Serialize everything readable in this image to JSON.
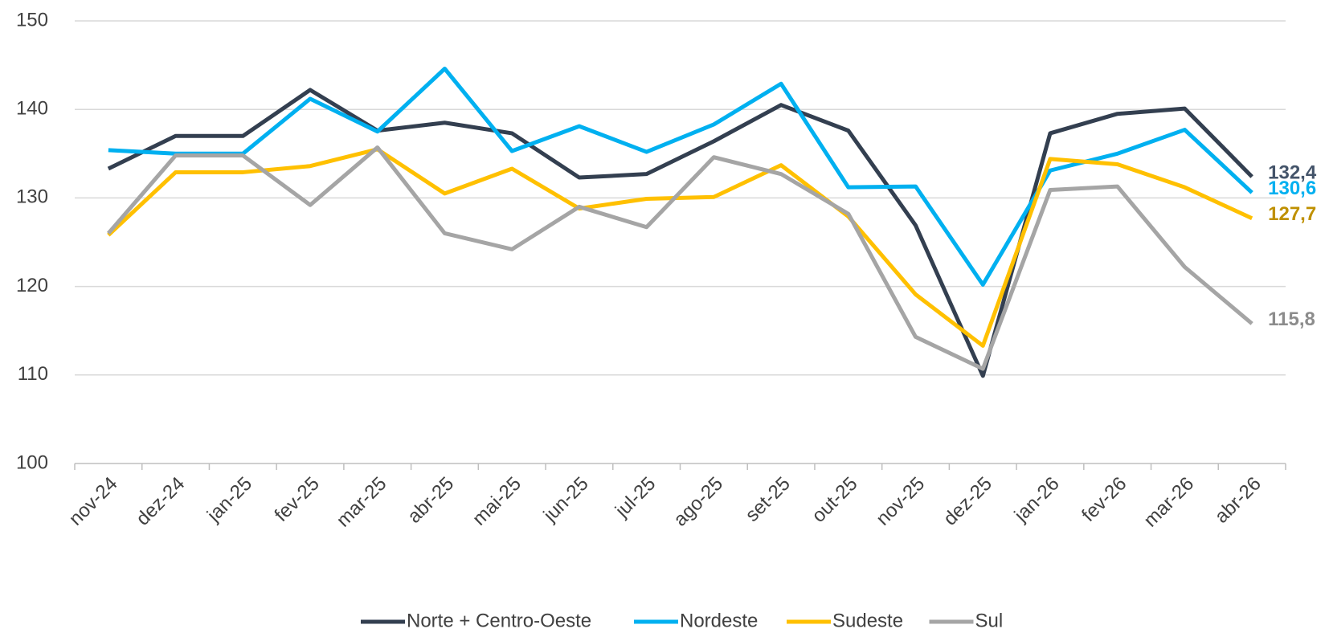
{
  "chart_data": {
    "type": "line",
    "categories": [
      "nov-24",
      "dez-24",
      "jan-25",
      "fev-25",
      "mar-25",
      "abr-25",
      "mai-25",
      "jun-25",
      "jul-25",
      "ago-25",
      "set-25",
      "out-25",
      "nov-25",
      "dez-25",
      "jan-26",
      "fev-26",
      "mar-26",
      "abr-26"
    ],
    "ylim": [
      100,
      150
    ],
    "yticks": [
      100,
      110,
      120,
      130,
      140,
      150
    ],
    "grid": true,
    "legend": "bottom",
    "series": [
      {
        "name": "Norte + Centro-Oeste",
        "color": "#333f50",
        "label_color": "#44546a",
        "values": [
          133.3,
          137.0,
          137.0,
          142.2,
          137.6,
          138.5,
          137.3,
          132.3,
          132.7,
          136.4,
          140.5,
          137.6,
          126.9,
          109.9,
          137.3,
          139.5,
          140.1,
          132.4
        ],
        "value_labels": [
          null,
          null,
          null,
          null,
          null,
          null,
          null,
          null,
          null,
          null,
          null,
          null,
          null,
          null,
          null,
          null,
          null,
          "132,4"
        ]
      },
      {
        "name": "Nordeste",
        "color": "#00b0f0",
        "label_color": "#00b0f0",
        "values": [
          135.4,
          135.0,
          135.0,
          141.2,
          137.5,
          144.6,
          135.3,
          138.1,
          135.2,
          138.3,
          142.9,
          131.2,
          131.3,
          120.2,
          133.1,
          135.0,
          137.7,
          130.6
        ],
        "value_labels": [
          null,
          null,
          null,
          null,
          null,
          null,
          null,
          null,
          null,
          null,
          null,
          null,
          null,
          null,
          null,
          null,
          null,
          "130,6"
        ]
      },
      {
        "name": "Sudeste",
        "color": "#ffc000",
        "label_color": "#bf9000",
        "values": [
          125.8,
          132.9,
          132.9,
          133.6,
          135.5,
          130.5,
          133.3,
          128.8,
          129.9,
          130.1,
          133.7,
          127.9,
          119.1,
          113.3,
          134.4,
          133.8,
          131.2,
          127.7
        ],
        "value_labels": [
          null,
          null,
          null,
          null,
          null,
          null,
          null,
          null,
          null,
          null,
          null,
          null,
          null,
          null,
          null,
          null,
          null,
          "127,7"
        ]
      },
      {
        "name": "Sul",
        "color": "#a5a5a5",
        "label_color": "#8c8c8c",
        "values": [
          126.0,
          134.8,
          134.8,
          129.2,
          135.7,
          126.0,
          124.2,
          129.0,
          126.7,
          134.6,
          132.7,
          128.2,
          114.3,
          110.7,
          130.9,
          131.3,
          122.2,
          115.8
        ],
        "value_labels": [
          null,
          null,
          null,
          null,
          null,
          null,
          null,
          null,
          null,
          null,
          null,
          null,
          null,
          null,
          null,
          null,
          null,
          "115,8"
        ]
      }
    ]
  }
}
